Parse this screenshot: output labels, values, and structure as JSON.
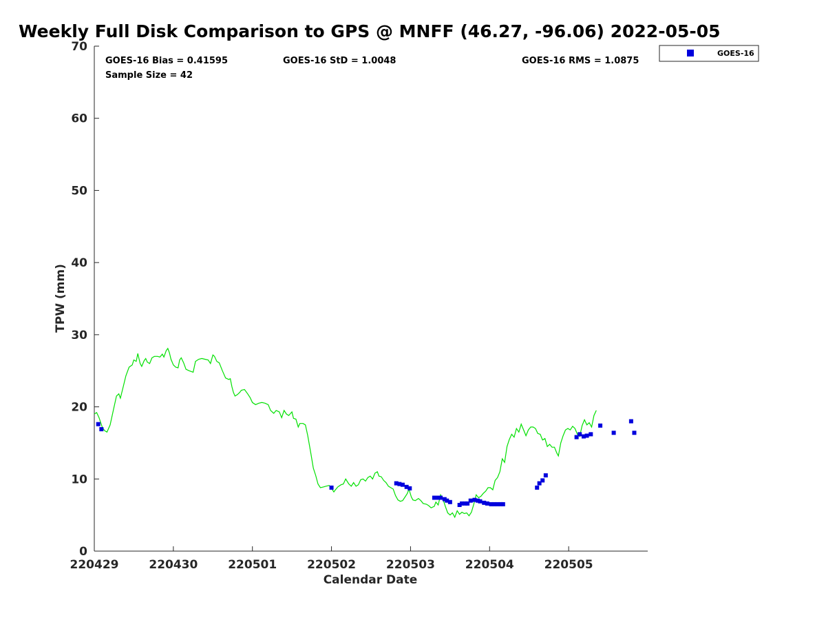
{
  "chart_data": {
    "type": "scatter",
    "title": "Weekly Full Disk Comparison to GPS @ MNFF (46.27, -96.06) 2022-05-05",
    "xlabel": "Calendar Date",
    "ylabel": "TPW (mm)",
    "xlim": [
      0,
      7
    ],
    "ylim": [
      0,
      70
    ],
    "x_ticks": [
      0,
      1,
      2,
      3,
      4,
      5,
      6
    ],
    "x_tick_labels": [
      "220429",
      "220430",
      "220501",
      "220502",
      "220503",
      "220504",
      "220505"
    ],
    "y_ticks": [
      0,
      10,
      20,
      30,
      40,
      50,
      60,
      70
    ],
    "y_tick_labels": [
      "0",
      "10",
      "20",
      "30",
      "40",
      "50",
      "60",
      "70"
    ],
    "grid": false,
    "legend": {
      "position": "outside-top-right",
      "entries": [
        "GOES-16"
      ]
    },
    "stats": {
      "bias": "GOES-16 Bias = 0.41595",
      "std": "GOES-16 StD = 1.0048",
      "rms": "GOES-16 RMS = 1.0875",
      "sample_size": "Sample Size = 42"
    },
    "colors": {
      "gps_line": "#00e000",
      "goes_points": "#0000dd"
    },
    "series": [
      {
        "kind": "line",
        "points": [
          [
            0.0,
            19.0
          ],
          [
            0.03,
            19.2
          ],
          [
            0.06,
            18.5
          ],
          [
            0.1,
            17.2
          ],
          [
            0.13,
            16.7
          ],
          [
            0.16,
            16.5
          ],
          [
            0.2,
            17.5
          ],
          [
            0.24,
            19.5
          ],
          [
            0.28,
            21.5
          ],
          [
            0.31,
            21.8
          ],
          [
            0.33,
            21.2
          ],
          [
            0.36,
            22.5
          ],
          [
            0.4,
            24.3
          ],
          [
            0.44,
            25.5
          ],
          [
            0.48,
            25.8
          ],
          [
            0.5,
            26.5
          ],
          [
            0.53,
            26.3
          ],
          [
            0.55,
            27.4
          ],
          [
            0.58,
            26.0
          ],
          [
            0.6,
            25.6
          ],
          [
            0.63,
            26.4
          ],
          [
            0.65,
            26.7
          ],
          [
            0.67,
            26.2
          ],
          [
            0.7,
            26.0
          ],
          [
            0.73,
            26.8
          ],
          [
            0.76,
            27.0
          ],
          [
            0.8,
            27.0
          ],
          [
            0.83,
            26.9
          ],
          [
            0.86,
            27.3
          ],
          [
            0.88,
            26.9
          ],
          [
            0.91,
            27.8
          ],
          [
            0.93,
            28.1
          ],
          [
            0.95,
            27.5
          ],
          [
            0.97,
            26.6
          ],
          [
            1.0,
            25.8
          ],
          [
            1.03,
            25.5
          ],
          [
            1.06,
            25.4
          ],
          [
            1.08,
            26.5
          ],
          [
            1.1,
            26.8
          ],
          [
            1.13,
            26.1
          ],
          [
            1.16,
            25.2
          ],
          [
            1.2,
            25.0
          ],
          [
            1.25,
            24.8
          ],
          [
            1.28,
            26.3
          ],
          [
            1.32,
            26.6
          ],
          [
            1.36,
            26.7
          ],
          [
            1.4,
            26.6
          ],
          [
            1.44,
            26.5
          ],
          [
            1.47,
            26.0
          ],
          [
            1.5,
            27.2
          ],
          [
            1.52,
            27.0
          ],
          [
            1.55,
            26.3
          ],
          [
            1.58,
            26.1
          ],
          [
            1.62,
            25.0
          ],
          [
            1.66,
            24.0
          ],
          [
            1.7,
            23.8
          ],
          [
            1.72,
            23.9
          ],
          [
            1.74,
            22.8
          ],
          [
            1.76,
            22.0
          ],
          [
            1.78,
            21.5
          ],
          [
            1.81,
            21.7
          ],
          [
            1.84,
            22.0
          ],
          [
            1.86,
            22.3
          ],
          [
            1.9,
            22.4
          ],
          [
            1.94,
            21.8
          ],
          [
            1.97,
            21.3
          ],
          [
            2.0,
            20.6
          ],
          [
            2.04,
            20.3
          ],
          [
            2.08,
            20.5
          ],
          [
            2.12,
            20.6
          ],
          [
            2.16,
            20.5
          ],
          [
            2.2,
            20.3
          ],
          [
            2.23,
            19.5
          ],
          [
            2.27,
            19.1
          ],
          [
            2.3,
            19.5
          ],
          [
            2.34,
            19.3
          ],
          [
            2.37,
            18.5
          ],
          [
            2.4,
            19.5
          ],
          [
            2.43,
            19.0
          ],
          [
            2.46,
            18.8
          ],
          [
            2.5,
            19.3
          ],
          [
            2.52,
            18.4
          ],
          [
            2.55,
            18.3
          ],
          [
            2.58,
            17.2
          ],
          [
            2.6,
            17.7
          ],
          [
            2.64,
            17.7
          ],
          [
            2.67,
            17.5
          ],
          [
            2.7,
            16.0
          ],
          [
            2.74,
            13.5
          ],
          [
            2.77,
            11.5
          ],
          [
            2.8,
            10.5
          ],
          [
            2.83,
            9.3
          ],
          [
            2.86,
            8.8
          ],
          [
            2.9,
            8.9
          ],
          [
            2.93,
            9.0
          ],
          [
            2.97,
            9.1
          ],
          [
            3.0,
            8.7
          ],
          [
            3.03,
            8.2
          ],
          [
            3.05,
            8.5
          ],
          [
            3.08,
            8.9
          ],
          [
            3.12,
            9.2
          ],
          [
            3.15,
            9.3
          ],
          [
            3.18,
            10.0
          ],
          [
            3.22,
            9.3
          ],
          [
            3.25,
            9.0
          ],
          [
            3.28,
            9.5
          ],
          [
            3.31,
            9.0
          ],
          [
            3.34,
            9.2
          ],
          [
            3.37,
            9.9
          ],
          [
            3.4,
            10.0
          ],
          [
            3.43,
            9.7
          ],
          [
            3.46,
            10.2
          ],
          [
            3.49,
            10.4
          ],
          [
            3.52,
            10.0
          ],
          [
            3.55,
            10.8
          ],
          [
            3.58,
            11.0
          ],
          [
            3.6,
            10.4
          ],
          [
            3.63,
            10.3
          ],
          [
            3.66,
            9.8
          ],
          [
            3.69,
            9.5
          ],
          [
            3.72,
            9.0
          ],
          [
            3.75,
            8.8
          ],
          [
            3.78,
            8.6
          ],
          [
            3.81,
            7.7
          ],
          [
            3.84,
            7.1
          ],
          [
            3.87,
            6.9
          ],
          [
            3.9,
            7.0
          ],
          [
            3.93,
            7.5
          ],
          [
            3.96,
            8.0
          ],
          [
            3.98,
            8.6
          ],
          [
            4.01,
            7.5
          ],
          [
            4.03,
            7.1
          ],
          [
            4.06,
            7.0
          ],
          [
            4.1,
            7.3
          ],
          [
            4.13,
            7.0
          ],
          [
            4.16,
            6.6
          ],
          [
            4.2,
            6.5
          ],
          [
            4.23,
            6.3
          ],
          [
            4.26,
            6.0
          ],
          [
            4.3,
            6.2
          ],
          [
            4.32,
            6.8
          ],
          [
            4.35,
            6.4
          ],
          [
            4.38,
            7.8
          ],
          [
            4.41,
            7.2
          ],
          [
            4.44,
            6.2
          ],
          [
            4.47,
            5.3
          ],
          [
            4.5,
            5.0
          ],
          [
            4.53,
            5.3
          ],
          [
            4.56,
            4.7
          ],
          [
            4.59,
            5.6
          ],
          [
            4.62,
            5.1
          ],
          [
            4.65,
            5.4
          ],
          [
            4.68,
            5.2
          ],
          [
            4.71,
            5.3
          ],
          [
            4.74,
            4.9
          ],
          [
            4.77,
            5.4
          ],
          [
            4.8,
            6.5
          ],
          [
            4.83,
            7.8
          ],
          [
            4.86,
            7.4
          ],
          [
            4.89,
            7.6
          ],
          [
            4.92,
            8.0
          ],
          [
            4.95,
            8.3
          ],
          [
            4.98,
            8.8
          ],
          [
            5.01,
            8.8
          ],
          [
            5.04,
            8.5
          ],
          [
            5.07,
            9.8
          ],
          [
            5.1,
            10.2
          ],
          [
            5.13,
            11.0
          ],
          [
            5.16,
            12.8
          ],
          [
            5.19,
            12.3
          ],
          [
            5.22,
            14.5
          ],
          [
            5.25,
            15.5
          ],
          [
            5.28,
            16.2
          ],
          [
            5.31,
            15.8
          ],
          [
            5.34,
            17.0
          ],
          [
            5.37,
            16.5
          ],
          [
            5.4,
            17.6
          ],
          [
            5.43,
            16.8
          ],
          [
            5.46,
            16.0
          ],
          [
            5.49,
            16.8
          ],
          [
            5.52,
            17.2
          ],
          [
            5.55,
            17.2
          ],
          [
            5.58,
            17.0
          ],
          [
            5.61,
            16.3
          ],
          [
            5.64,
            16.2
          ],
          [
            5.67,
            15.4
          ],
          [
            5.7,
            15.6
          ],
          [
            5.73,
            14.5
          ],
          [
            5.76,
            14.8
          ],
          [
            5.79,
            14.4
          ],
          [
            5.82,
            14.4
          ],
          [
            5.85,
            13.6
          ],
          [
            5.87,
            13.2
          ],
          [
            5.9,
            15.0
          ],
          [
            5.93,
            16.0
          ],
          [
            5.96,
            16.8
          ],
          [
            5.99,
            17.0
          ],
          [
            6.02,
            16.8
          ],
          [
            6.05,
            17.3
          ],
          [
            6.08,
            17.0
          ],
          [
            6.11,
            16.2
          ],
          [
            6.14,
            15.9
          ],
          [
            6.17,
            17.4
          ],
          [
            6.2,
            18.2
          ],
          [
            6.23,
            17.5
          ],
          [
            6.26,
            17.8
          ],
          [
            6.29,
            17.2
          ],
          [
            6.32,
            18.8
          ],
          [
            6.35,
            19.5
          ]
        ]
      },
      {
        "name": "GOES-16",
        "kind": "scatter",
        "points": [
          [
            0.05,
            17.6
          ],
          [
            0.09,
            16.9
          ],
          [
            3.0,
            8.8
          ],
          [
            3.82,
            9.4
          ],
          [
            3.86,
            9.3
          ],
          [
            3.9,
            9.2
          ],
          [
            3.95,
            8.9
          ],
          [
            3.99,
            8.7
          ],
          [
            4.3,
            7.4
          ],
          [
            4.35,
            7.4
          ],
          [
            4.38,
            7.4
          ],
          [
            4.43,
            7.2
          ],
          [
            4.46,
            7.0
          ],
          [
            4.5,
            6.8
          ],
          [
            4.62,
            6.4
          ],
          [
            4.65,
            6.6
          ],
          [
            4.69,
            6.6
          ],
          [
            4.72,
            6.6
          ],
          [
            4.76,
            7.0
          ],
          [
            4.81,
            7.1
          ],
          [
            4.85,
            7.0
          ],
          [
            4.88,
            6.9
          ],
          [
            4.93,
            6.7
          ],
          [
            4.97,
            6.6
          ],
          [
            5.02,
            6.5
          ],
          [
            5.06,
            6.5
          ],
          [
            5.1,
            6.5
          ],
          [
            5.14,
            6.5
          ],
          [
            5.17,
            6.5
          ],
          [
            5.6,
            8.8
          ],
          [
            5.63,
            9.4
          ],
          [
            5.67,
            9.8
          ],
          [
            5.71,
            10.5
          ],
          [
            6.1,
            15.8
          ],
          [
            6.14,
            16.2
          ],
          [
            6.19,
            15.9
          ],
          [
            6.23,
            16.0
          ],
          [
            6.28,
            16.2
          ],
          [
            6.4,
            17.4
          ],
          [
            6.57,
            16.4
          ],
          [
            6.79,
            18.0
          ],
          [
            6.83,
            16.4
          ]
        ]
      }
    ]
  }
}
